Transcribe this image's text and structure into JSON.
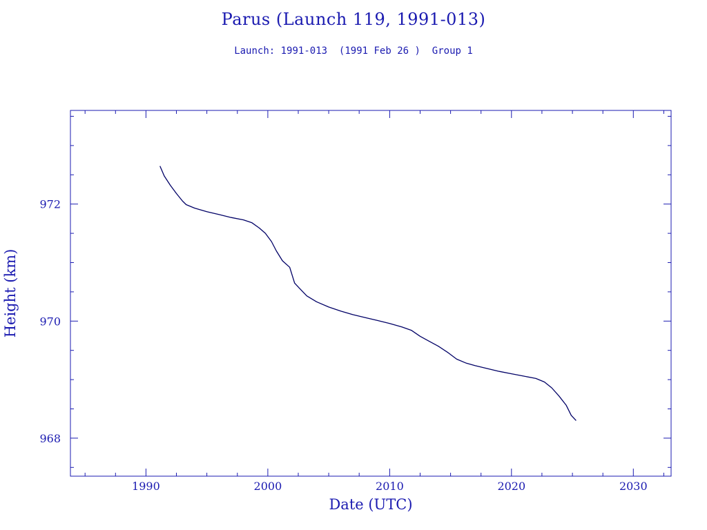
{
  "colors": {
    "ink": "#1a1ab0",
    "line": "#000066",
    "background": "#ffffff"
  },
  "chart_data": {
    "type": "line",
    "title": "Parus (Launch 119, 1991-013)",
    "subtitle": "Launch: 1991-013  (1991 Feb 26 )  Group 1",
    "xlabel": "Date (UTC)",
    "ylabel": "Height (km)",
    "xlim": [
      1983.8,
      2033.1
    ],
    "ylim": [
      967.35,
      973.6
    ],
    "x_ticks": [
      1990,
      2000,
      2010,
      2020,
      2030
    ],
    "x_tick_labels": [
      "1990",
      "2000",
      "2010",
      "2020",
      "2030"
    ],
    "x_minor_step": 2.5,
    "y_ticks": [
      968,
      970,
      972
    ],
    "y_tick_labels": [
      "968",
      "970",
      "972"
    ],
    "y_minor_step": 0.5,
    "grid": false,
    "legend": "none",
    "series": [
      {
        "x": [
          1991.15,
          1991.5,
          1992.0,
          1992.5,
          1993.0,
          1993.3,
          1994.0,
          1995.0,
          1996.0,
          1997.0,
          1998.0,
          1998.7,
          1999.3,
          1999.8,
          2000.3,
          2000.7,
          2001.2,
          2001.8,
          2002.2,
          2002.6,
          2003.2,
          2004.0,
          2005.0,
          2006.0,
          2007.0,
          2008.0,
          2009.0,
          2010.0,
          2011.0,
          2011.8,
          2012.5,
          2013.2,
          2014.0,
          2014.8,
          2015.5,
          2016.3,
          2017.0,
          2018.0,
          2019.0,
          2020.0,
          2021.0,
          2022.0,
          2022.7,
          2023.3,
          2023.9,
          2024.5,
          2024.9,
          2025.3
        ],
        "y": [
          972.65,
          972.48,
          972.32,
          972.18,
          972.05,
          971.99,
          971.93,
          971.87,
          971.82,
          971.77,
          971.73,
          971.68,
          971.59,
          971.5,
          971.36,
          971.2,
          971.03,
          970.92,
          970.65,
          970.56,
          970.43,
          970.33,
          970.24,
          970.17,
          970.11,
          970.06,
          970.01,
          969.96,
          969.9,
          969.84,
          969.74,
          969.66,
          969.57,
          969.46,
          969.35,
          969.28,
          969.24,
          969.19,
          969.14,
          969.1,
          969.06,
          969.02,
          968.96,
          968.86,
          968.72,
          968.56,
          968.39,
          968.3
        ]
      }
    ]
  }
}
